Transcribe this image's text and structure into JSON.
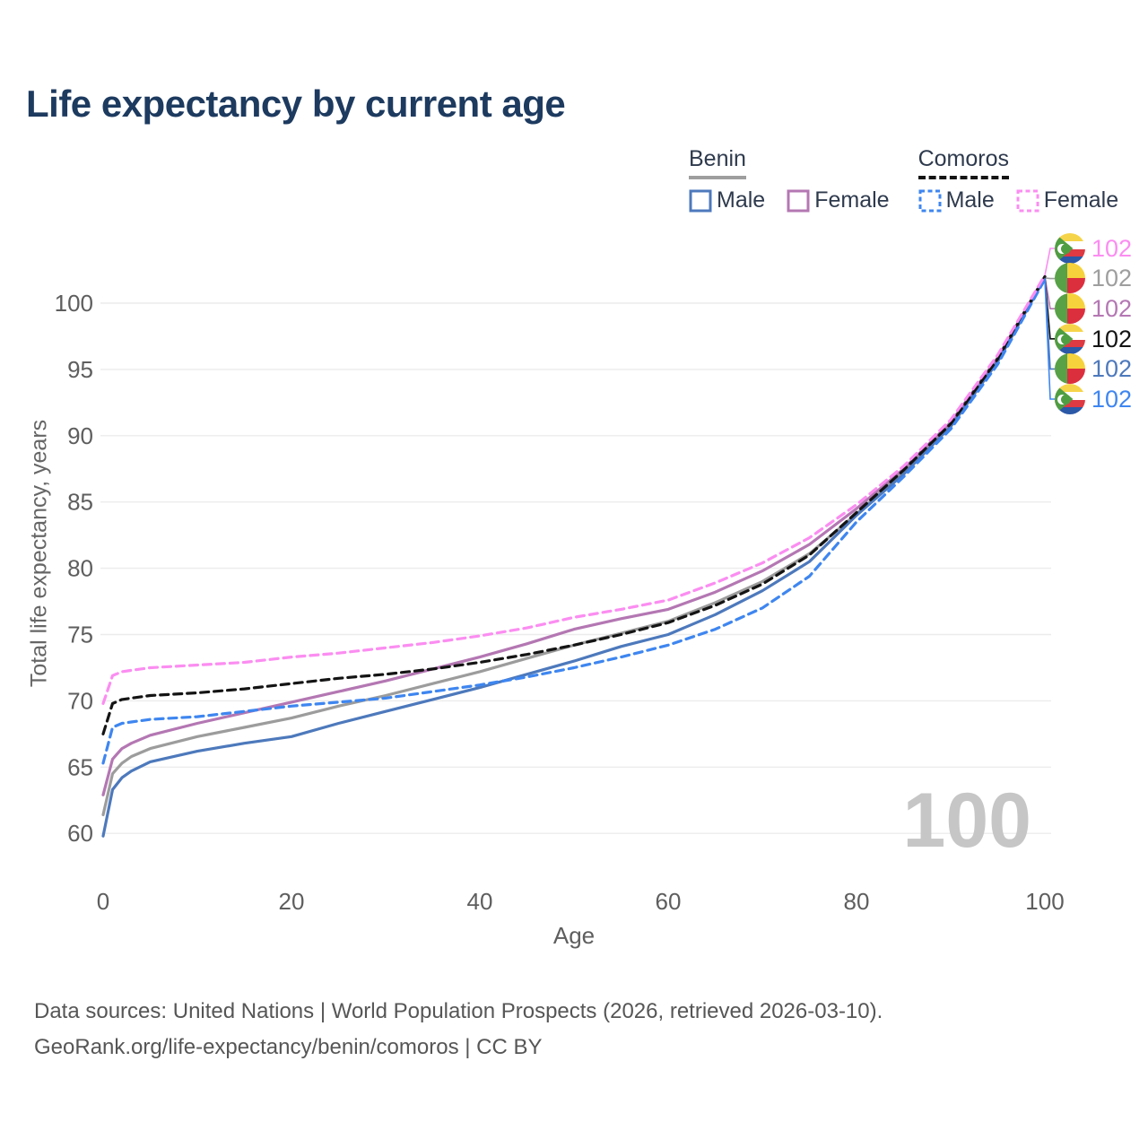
{
  "title": "Life expectancy by current age",
  "watermark": "100",
  "legend": {
    "groups": [
      {
        "label": "Benin",
        "underline": {
          "color": "#9e9e9e",
          "dashed": false
        },
        "items": [
          {
            "label": "Male",
            "color": "#4d79bc",
            "dashed": false
          },
          {
            "label": "Female",
            "color": "#b477b3",
            "dashed": false
          }
        ]
      },
      {
        "label": "Comoros",
        "underline": {
          "color": "#141414",
          "dashed": true
        },
        "items": [
          {
            "label": "Male",
            "color": "#3e86f0",
            "dashed": true
          },
          {
            "label": "Female",
            "color": "#fb8df1",
            "dashed": true
          }
        ]
      }
    ]
  },
  "endpoint_labels": [
    {
      "series": "Comoros Female",
      "series_key": "comoros_female",
      "flag": "comoros",
      "value": "102",
      "color": "#fb8df1"
    },
    {
      "series": "Benin Both sexes",
      "series_key": "benin_both",
      "flag": "benin",
      "value": "102",
      "color": "#9e9e9e"
    },
    {
      "series": "Benin Female",
      "series_key": "benin_female",
      "flag": "benin",
      "value": "102",
      "color": "#b477b3"
    },
    {
      "series": "Comoros Both sexes",
      "series_key": "comoros_both",
      "flag": "comoros",
      "value": "102",
      "color": "#141414"
    },
    {
      "series": "Benin Male",
      "series_key": "benin_male",
      "flag": "benin",
      "value": "102",
      "color": "#4d79bc"
    },
    {
      "series": "Comoros Male",
      "series_key": "comoros_male",
      "flag": "comoros",
      "value": "102",
      "color": "#3e86f0"
    }
  ],
  "chart_data": {
    "type": "line",
    "title": "Life expectancy by current age",
    "xlabel": "Age",
    "ylabel": "Total life expectancy, years",
    "xlim": [
      0,
      100
    ],
    "ylim": [
      58.5,
      103
    ],
    "xticks": [
      0,
      20,
      40,
      60,
      80,
      100
    ],
    "yticks": [
      60,
      65,
      70,
      75,
      80,
      85,
      90,
      95,
      100
    ],
    "grid": true,
    "legend_position": "top-right",
    "x": [
      0,
      1,
      2,
      3,
      5,
      10,
      15,
      20,
      25,
      30,
      35,
      40,
      45,
      50,
      55,
      60,
      65,
      70,
      75,
      80,
      85,
      90,
      95,
      100
    ],
    "series": [
      {
        "key": "benin_both",
        "name": "Benin — Both sexes",
        "color": "#9c9c9c",
        "dashed": false,
        "values": [
          61.4,
          64.5,
          65.3,
          65.8,
          66.4,
          67.3,
          68.0,
          68.7,
          69.6,
          70.4,
          71.3,
          72.2,
          73.2,
          74.2,
          75.1,
          76.0,
          77.4,
          79.0,
          81.1,
          84.1,
          87.3,
          90.8,
          95.7,
          101.9
        ]
      },
      {
        "key": "benin_female",
        "name": "Benin — Female",
        "color": "#b477b3",
        "dashed": false,
        "values": [
          62.9,
          65.6,
          66.4,
          66.8,
          67.4,
          68.3,
          69.1,
          69.9,
          70.7,
          71.5,
          72.4,
          73.3,
          74.3,
          75.4,
          76.2,
          76.9,
          78.2,
          79.8,
          81.8,
          84.5,
          87.5,
          91.0,
          95.9,
          102.0
        ]
      },
      {
        "key": "benin_male",
        "name": "Benin — Male",
        "color": "#4d79bc",
        "dashed": false,
        "values": [
          59.8,
          63.3,
          64.2,
          64.7,
          65.4,
          66.2,
          66.8,
          67.3,
          68.3,
          69.2,
          70.1,
          71.0,
          72.0,
          73.0,
          74.1,
          75.0,
          76.5,
          78.3,
          80.5,
          84.0,
          87.1,
          90.7,
          95.6,
          101.9
        ]
      },
      {
        "key": "comoros_both",
        "name": "Comoros — Both sexes",
        "color": "#141414",
        "dashed": true,
        "values": [
          67.5,
          69.8,
          70.1,
          70.2,
          70.4,
          70.6,
          70.9,
          71.3,
          71.7,
          72.0,
          72.4,
          72.9,
          73.5,
          74.2,
          75.0,
          75.9,
          77.2,
          78.8,
          81.0,
          84.2,
          87.4,
          90.9,
          95.8,
          102.0
        ]
      },
      {
        "key": "comoros_male",
        "name": "Comoros — Male",
        "color": "#3e86f0",
        "dashed": true,
        "values": [
          65.3,
          68.0,
          68.3,
          68.4,
          68.6,
          68.8,
          69.2,
          69.6,
          69.9,
          70.2,
          70.7,
          71.2,
          71.8,
          72.5,
          73.3,
          74.2,
          75.4,
          77.0,
          79.4,
          83.5,
          86.9,
          90.5,
          95.4,
          101.8
        ]
      },
      {
        "key": "comoros_female",
        "name": "Comoros — Female",
        "color": "#fb8df1",
        "dashed": true,
        "values": [
          69.8,
          71.9,
          72.2,
          72.3,
          72.5,
          72.7,
          72.9,
          73.3,
          73.6,
          74.0,
          74.4,
          74.9,
          75.5,
          76.3,
          76.9,
          77.6,
          78.9,
          80.4,
          82.3,
          84.8,
          87.7,
          91.2,
          96.1,
          102.1
        ]
      }
    ]
  },
  "footer": {
    "line1": "Data sources: United Nations | World Population Prospects (2026, retrieved 2026-03-10).",
    "line2": "GeoRank.org/life-expectancy/benin/comoros | CC BY"
  }
}
